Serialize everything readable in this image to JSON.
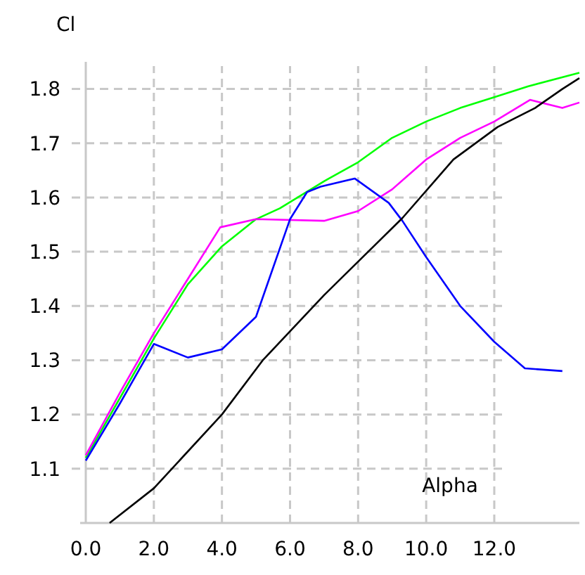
{
  "chart_data": {
    "type": "line",
    "xlabel": "Alpha",
    "ylabel": "Cl",
    "xlim": [
      0,
      14.5
    ],
    "ylim": [
      1.0,
      1.85
    ],
    "xticks": [
      {
        "value": 0,
        "label": "0.0"
      },
      {
        "value": 2,
        "label": "2.0"
      },
      {
        "value": 4,
        "label": "4.0"
      },
      {
        "value": 6,
        "label": "6.0"
      },
      {
        "value": 8,
        "label": "8.0"
      },
      {
        "value": 10,
        "label": "10.0"
      },
      {
        "value": 12,
        "label": "12.0"
      }
    ],
    "yticks": [
      1.1,
      1.2,
      1.3,
      1.4,
      1.5,
      1.6,
      1.7,
      1.8
    ],
    "grid": true,
    "line_style": "solid",
    "marker": "none",
    "series": [
      {
        "color": "#00ff00",
        "x": [
          0,
          1,
          2,
          3,
          4,
          5,
          5.7,
          7,
          8,
          9,
          10,
          11,
          12,
          13,
          14.5
        ],
        "values": [
          1.12,
          1.23,
          1.34,
          1.44,
          1.51,
          1.56,
          1.58,
          1.63,
          1.665,
          1.71,
          1.74,
          1.765,
          1.785,
          1.805,
          1.83
        ]
      },
      {
        "color": "#ff00ff",
        "x": [
          0,
          1,
          2,
          3,
          3.95,
          5,
          7,
          8,
          9,
          10,
          11,
          12,
          13.05,
          14,
          14.5
        ],
        "values": [
          1.125,
          1.24,
          1.35,
          1.45,
          1.545,
          1.56,
          1.557,
          1.575,
          1.615,
          1.67,
          1.71,
          1.74,
          1.78,
          1.765,
          1.775
        ]
      },
      {
        "color": "#0000ff",
        "x": [
          0,
          1,
          2,
          3,
          4,
          5,
          5.5,
          6,
          6.5,
          6.9,
          7.9,
          8.9,
          9.3,
          10,
          11,
          12,
          12.9,
          14
        ],
        "values": [
          1.115,
          1.22,
          1.33,
          1.305,
          1.32,
          1.38,
          1.47,
          1.56,
          1.61,
          1.62,
          1.635,
          1.59,
          1.557,
          1.49,
          1.4,
          1.334,
          1.285,
          1.28
        ]
      },
      {
        "color": "#000000",
        "x": [
          0.7,
          2,
          4,
          5.2,
          7,
          9.3,
          10.8,
          12.1,
          13.2,
          14,
          14.5
        ],
        "values": [
          1.0,
          1.064,
          1.2,
          1.3,
          1.42,
          1.562,
          1.67,
          1.73,
          1.765,
          1.8,
          1.82
        ]
      }
    ]
  }
}
